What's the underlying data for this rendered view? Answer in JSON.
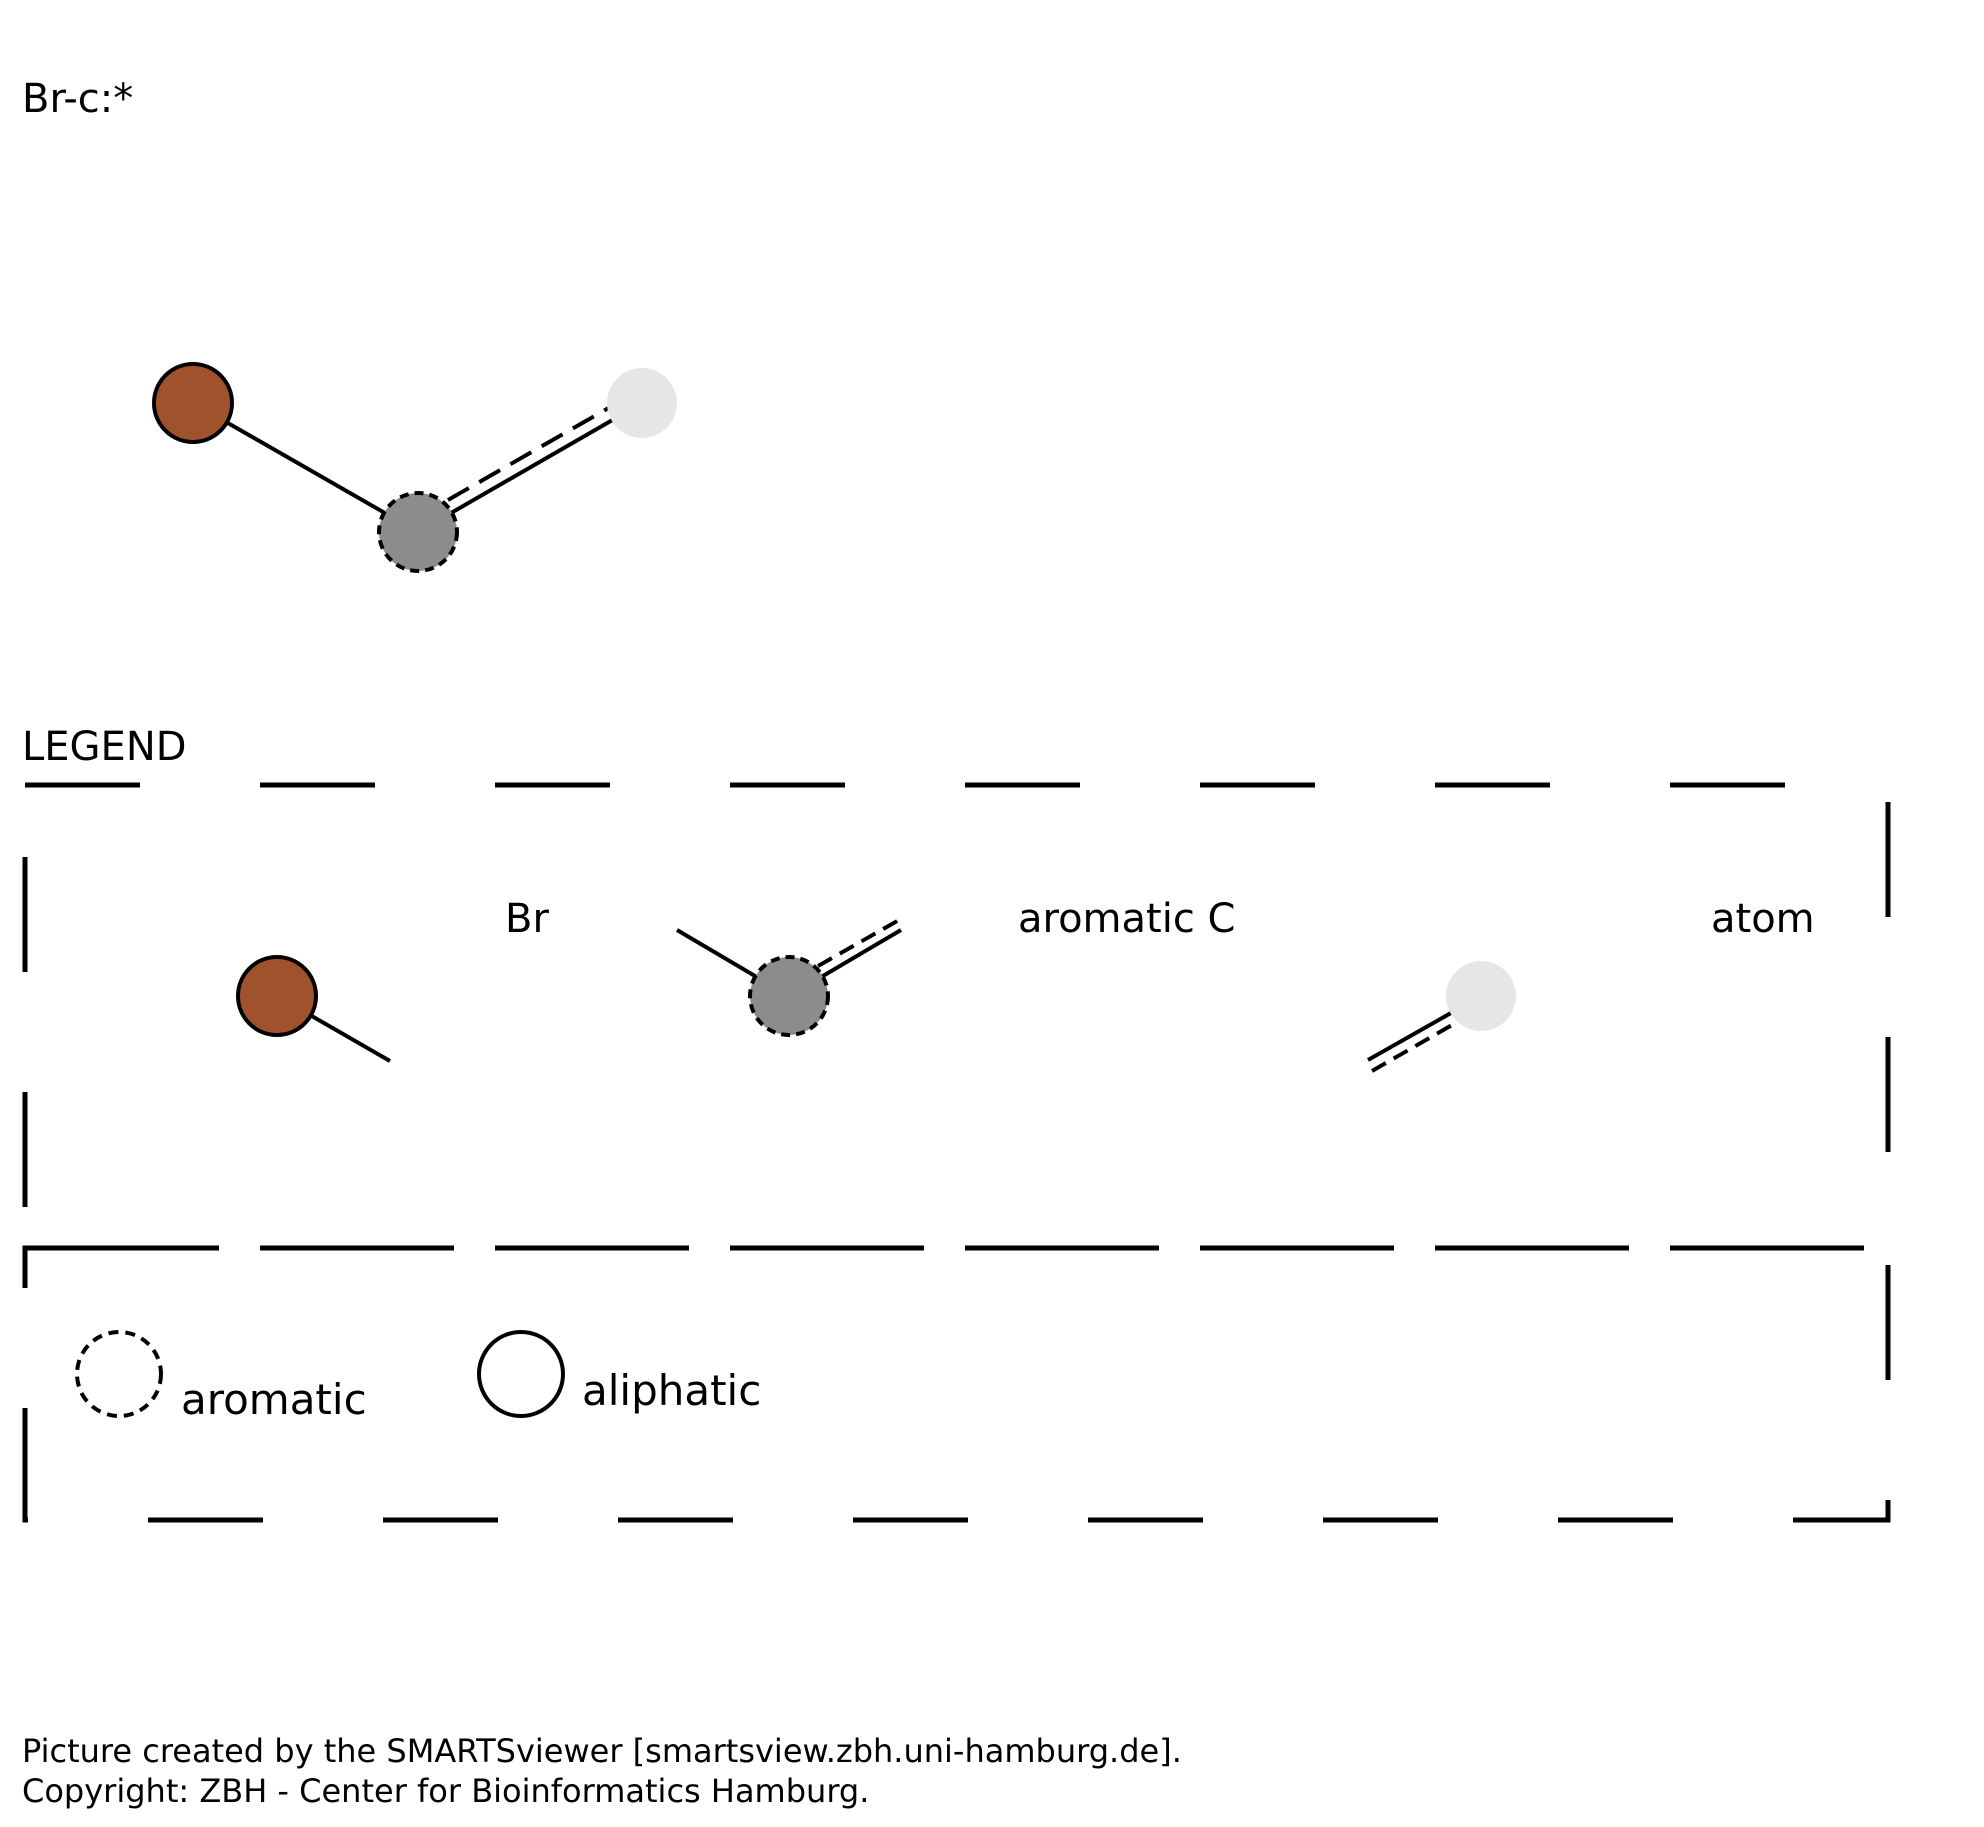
{
  "smarts": "Br-c:*",
  "legend": {
    "title": "LEGEND",
    "atoms": [
      {
        "label": "Br",
        "color": "#a0522d"
      },
      {
        "label": "aromatic C",
        "color": "#8c8c8c"
      },
      {
        "label": "atom",
        "color": "#e6e6e6"
      }
    ],
    "aromatic_label": "aromatic",
    "aliphatic_label": "aliphatic"
  },
  "molecule": {
    "atoms": [
      {
        "id": "br",
        "color": "#a0522d",
        "outline": "solid"
      },
      {
        "id": "c",
        "color": "#8c8c8c",
        "outline": "dashed"
      },
      {
        "id": "any",
        "color": "#e6e6e6",
        "outline": "none"
      }
    ],
    "bonds": [
      {
        "from": "br",
        "to": "c",
        "type": "single"
      },
      {
        "from": "c",
        "to": "any",
        "type": "aromatic"
      }
    ]
  },
  "footer": {
    "line1": "Picture created by the SMARTSviewer [smartsview.zbh.uni-hamburg.de].",
    "line2": "Copyright: ZBH - Center for Bioinformatics Hamburg."
  }
}
